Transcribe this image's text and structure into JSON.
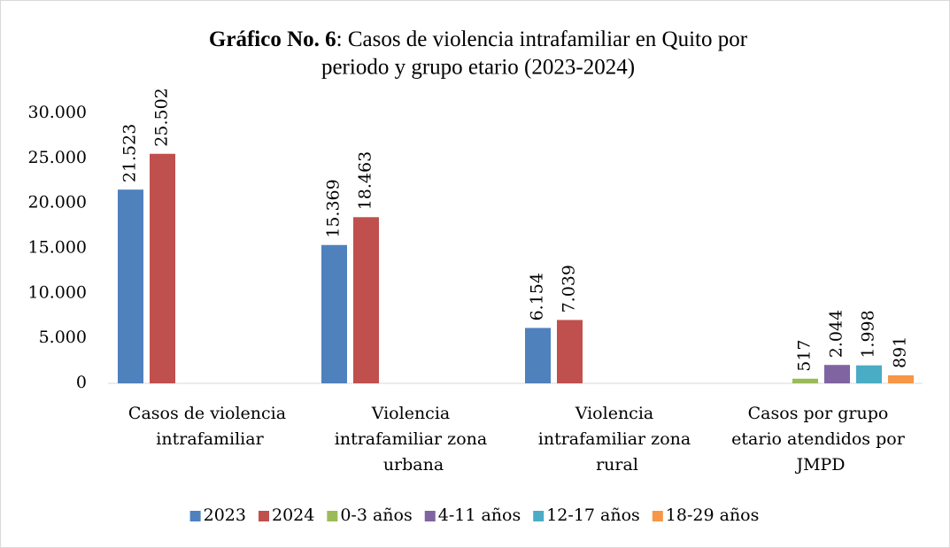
{
  "chart_data": {
    "type": "bar",
    "title": [
      "Gráfico No. 6",
      ": Casos de violencia intrafamiliar en Quito por",
      "periodo y grupo etario (2023-2024)"
    ],
    "categories": [
      "Casos de violencia intrafamiliar",
      "Violencia intrafamiliar zona urbana",
      "Violencia intrafamiliar zona rural",
      "Casos por grupo etario atendidos por JMPD"
    ],
    "series": [
      {
        "name": "2023",
        "color": "#4f81bd",
        "values": [
          21523,
          15369,
          6154,
          null
        ],
        "value_labels": [
          "21.523",
          "15.369",
          "6.154",
          null
        ]
      },
      {
        "name": "2024",
        "color": "#c0504d",
        "values": [
          25502,
          18463,
          7039,
          null
        ],
        "value_labels": [
          "25.502",
          "18.463",
          "7.039",
          null
        ]
      },
      {
        "name": "0-3 años",
        "color": "#9bbb59",
        "values": [
          null,
          null,
          null,
          517
        ],
        "value_labels": [
          null,
          null,
          null,
          "517"
        ]
      },
      {
        "name": "4-11 años",
        "color": "#8064a2",
        "values": [
          null,
          null,
          null,
          2044
        ],
        "value_labels": [
          null,
          null,
          null,
          "2.044"
        ]
      },
      {
        "name": "12-17 años",
        "color": "#4bacc6",
        "values": [
          null,
          null,
          null,
          1998
        ],
        "value_labels": [
          null,
          null,
          null,
          "1.998"
        ]
      },
      {
        "name": "18-29 años",
        "color": "#f79646",
        "values": [
          null,
          null,
          null,
          891
        ],
        "value_labels": [
          null,
          null,
          null,
          "891"
        ]
      }
    ],
    "ylim": [
      0,
      30000
    ],
    "yticks": [
      0,
      {
        "value": 5000,
        "label": "5.000"
      },
      {
        "value": 10000,
        "label": "10.000"
      },
      {
        "value": 15000,
        "label": "15.000"
      },
      {
        "value": 20000,
        "label": "20.000"
      },
      {
        "value": 25000,
        "label": "25.000"
      },
      {
        "value": 30000,
        "label": "30.000"
      }
    ],
    "grid": false,
    "legend": "bottom"
  }
}
